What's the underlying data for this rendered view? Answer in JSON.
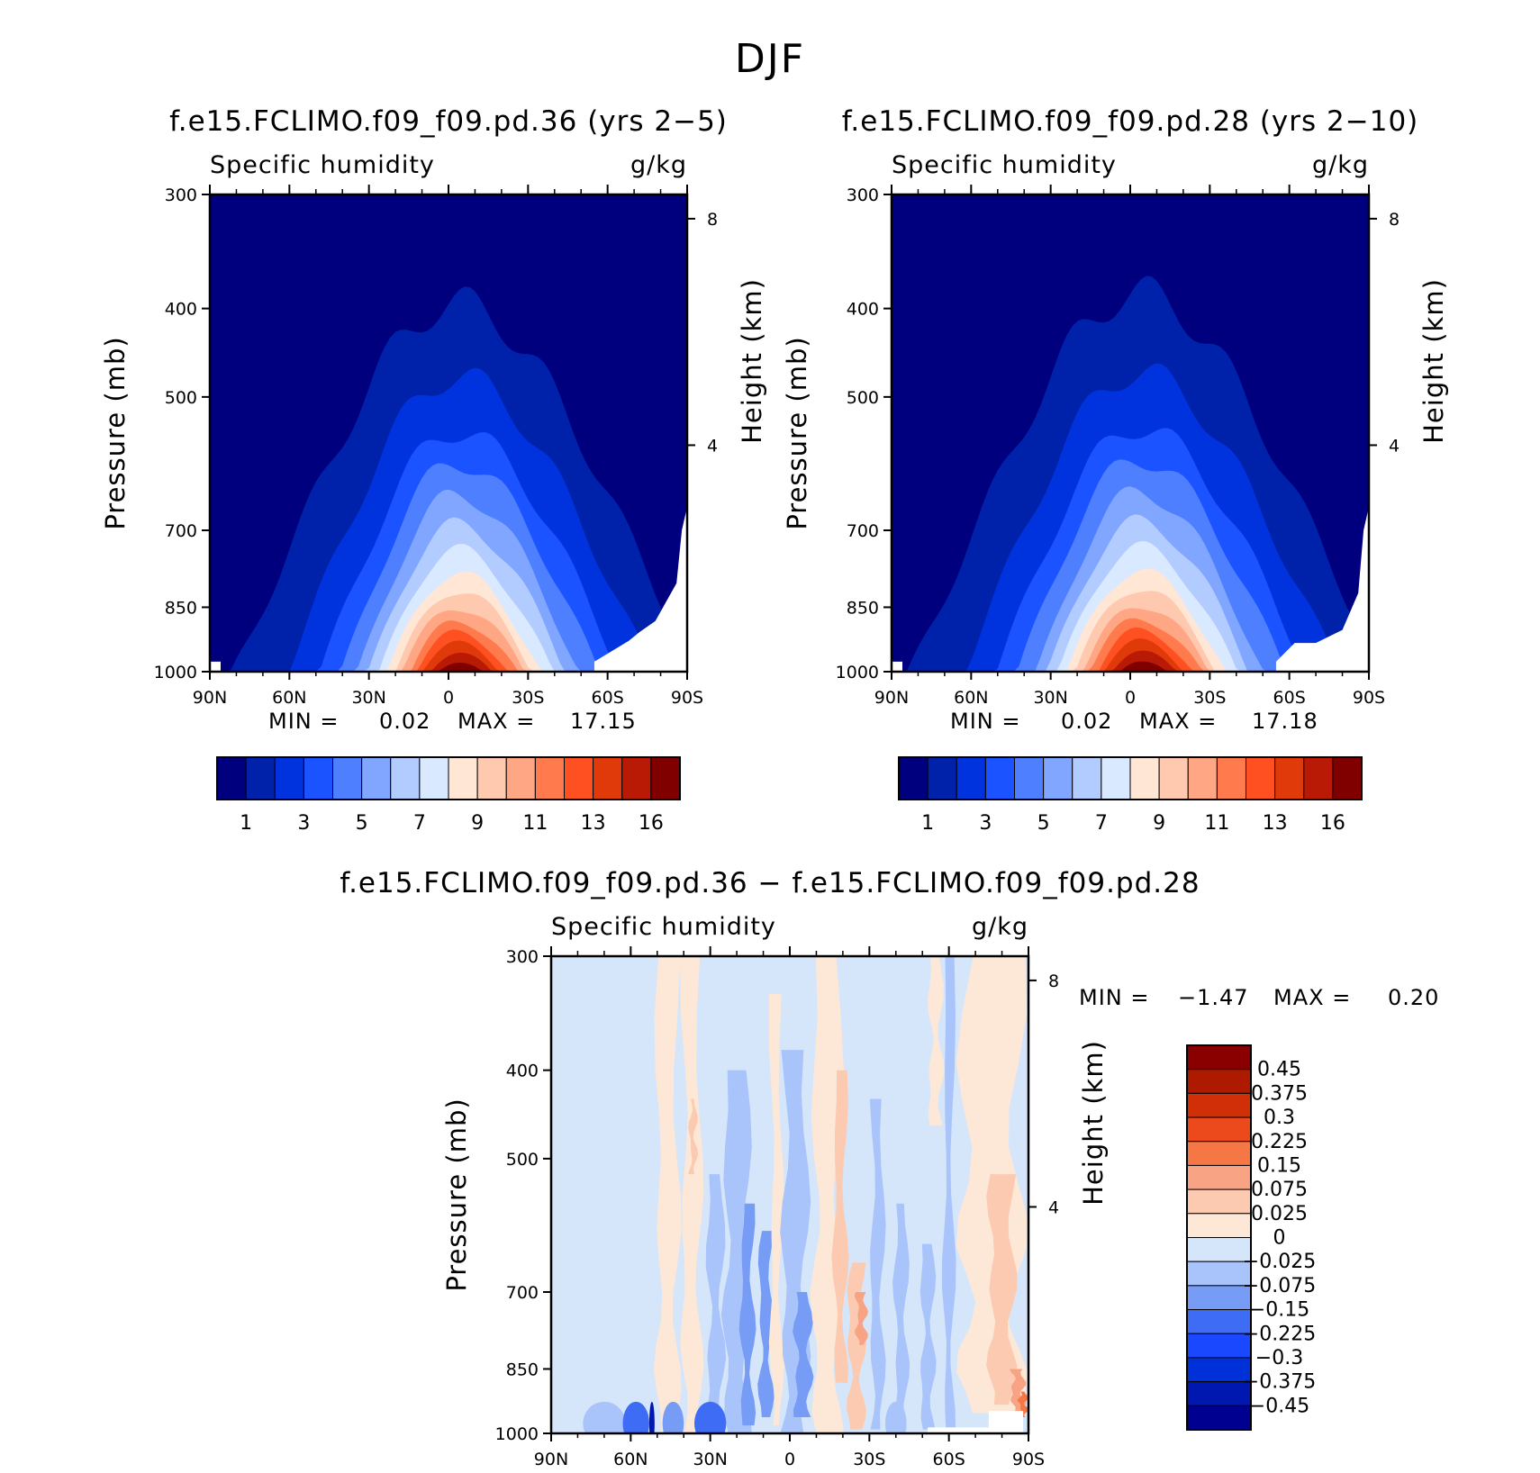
{
  "figure_title": "DJF",
  "colors": {
    "abs_levels": [
      "#00007f",
      "#0022aa",
      "#0033dd",
      "#1a53ff",
      "#4d7fff",
      "#80a6ff",
      "#b3ccff",
      "#d9e9ff",
      "#ffe6d5",
      "#ffc9b0",
      "#ffa784",
      "#ff7a4d",
      "#ff5022",
      "#e03a0a",
      "#b81a05",
      "#800000"
    ],
    "diff_levels": [
      "#000090",
      "#0018b0",
      "#0030d8",
      "#1a48ff",
      "#3f6cf4",
      "#779cf5",
      "#a9c4fa",
      "#d5e6fb",
      "#fde8d8",
      "#fccab0",
      "#f8a383",
      "#f57746",
      "#ec4a1c",
      "#d12f08",
      "#ad1a00",
      "#8a0000"
    ]
  },
  "chart_data": [
    {
      "type": "contour",
      "title": "f.e15.FCLIMO.f09_f09.pd.36 (yrs 2−5)",
      "variable": "Specific humidity",
      "units": "g/kg",
      "ylabel": "Pressure (mb)",
      "ylabel_right": "Height (km)",
      "ylim": [
        1000,
        300
      ],
      "y_scale": "log",
      "yticks": [
        "300",
        "400",
        "500",
        "700",
        "850",
        "1000"
      ],
      "right_ticks": [
        "8",
        "4"
      ],
      "xticks": [
        "90N",
        "60N",
        "30N",
        "0",
        "30S",
        "60S",
        "90S"
      ],
      "min_label": "MIN =",
      "min_value": "0.02",
      "max_label": "MAX =",
      "max_value": "17.15",
      "colorbar_labels": [
        "1",
        "3",
        "5",
        "7",
        "9",
        "11",
        "13",
        "16"
      ]
    },
    {
      "type": "contour",
      "title": "f.e15.FCLIMO.f09_f09.pd.28 (yrs 2−10)",
      "variable": "Specific humidity",
      "units": "g/kg",
      "ylabel": "Pressure (mb)",
      "ylabel_right": "Height (km)",
      "ylim": [
        1000,
        300
      ],
      "y_scale": "log",
      "yticks": [
        "300",
        "400",
        "500",
        "700",
        "850",
        "1000"
      ],
      "right_ticks": [
        "8",
        "4"
      ],
      "xticks": [
        "90N",
        "60N",
        "30N",
        "0",
        "30S",
        "60S",
        "90S"
      ],
      "min_label": "MIN =",
      "min_value": "0.02",
      "max_label": "MAX =",
      "max_value": "17.18",
      "colorbar_labels": [
        "1",
        "3",
        "5",
        "7",
        "9",
        "11",
        "13",
        "16"
      ]
    },
    {
      "type": "contour",
      "title": "f.e15.FCLIMO.f09_f09.pd.36 − f.e15.FCLIMO.f09_f09.pd.28",
      "variable": "Specific humidity",
      "units": "g/kg",
      "ylabel": "Pressure (mb)",
      "ylabel_right": "Height (km)",
      "ylim": [
        1000,
        300
      ],
      "y_scale": "log",
      "yticks": [
        "300",
        "400",
        "500",
        "700",
        "850",
        "1000"
      ],
      "right_ticks": [
        "8",
        "4"
      ],
      "xticks": [
        "90N",
        "60N",
        "30N",
        "0",
        "30S",
        "60S",
        "90S"
      ],
      "min_label": "MIN =",
      "min_value": "−1.47",
      "max_label": "MAX =",
      "max_value": "0.20",
      "colorbar_labels": [
        "0.45",
        "0.375",
        "0.3",
        "0.225",
        "0.15",
        "0.075",
        "0.025",
        "0",
        "−0.025",
        "−0.075",
        "−0.15",
        "−0.225",
        "−0.3",
        "−0.375",
        "−0.45"
      ]
    }
  ]
}
